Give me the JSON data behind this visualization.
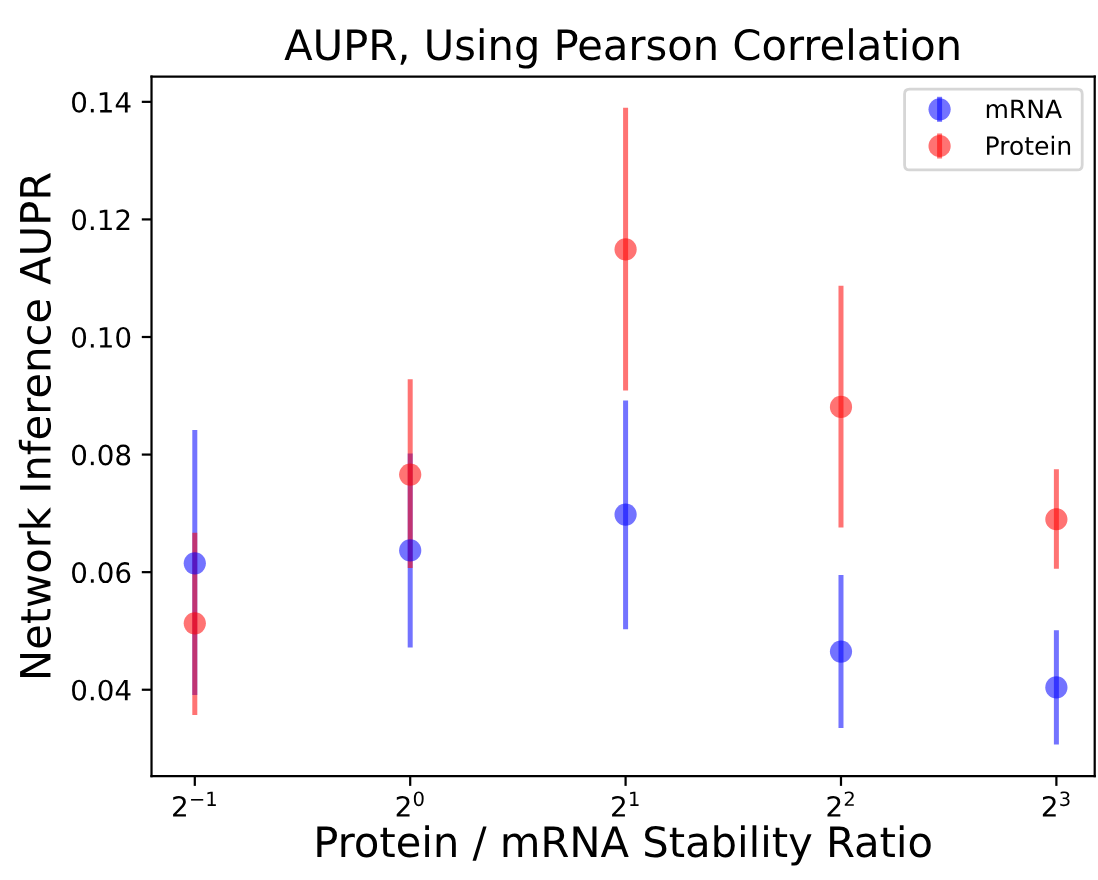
{
  "chart_data": {
    "type": "scatter",
    "title": "AUPR, Using Pearson Correlation",
    "xlabel": "Protein / mRNA Stability Ratio",
    "ylabel": "Network Inference AUPR",
    "x": [
      0.5,
      1,
      2,
      4,
      8
    ],
    "log": "x",
    "marker": "circle",
    "legend": "top right",
    "grid": false,
    "xlim": [
      0.435,
      9.05
    ],
    "ylim": [
      0.0253,
      0.1443
    ],
    "xticks": [
      {
        "value": 0.5,
        "label": "2$^{−1}$"
      },
      {
        "value": 1,
        "label": "2$^{0}$"
      },
      {
        "value": 2,
        "label": "2$^{1}$"
      },
      {
        "value": 4,
        "label": "2$^{2}$"
      },
      {
        "value": 8,
        "label": "2$^{3}$"
      }
    ],
    "yticks": [
      {
        "value": 0.04,
        "label": "0.04"
      },
      {
        "value": 0.06,
        "label": "0.06"
      },
      {
        "value": 0.08,
        "label": "0.08"
      },
      {
        "value": 0.1,
        "label": "0.10"
      },
      {
        "value": 0.12,
        "label": "0.12"
      },
      {
        "value": 0.14,
        "label": "0.14"
      }
    ],
    "series": [
      {
        "name": "mRNA",
        "color": "#0000ff",
        "values": [
          0.0615,
          0.0637,
          0.0698,
          0.0465,
          0.0404
        ],
        "errors": [
          [
            0.0391,
            0.0842
          ],
          [
            0.0472,
            0.0802
          ],
          [
            0.0503,
            0.0892
          ],
          [
            0.0335,
            0.0595
          ],
          [
            0.0307,
            0.0501
          ]
        ]
      },
      {
        "name": "Protein",
        "color": "#ff0000",
        "values": [
          0.0513,
          0.0766,
          0.1149,
          0.0881,
          0.069
        ],
        "errors": [
          [
            0.0357,
            0.0667
          ],
          [
            0.0607,
            0.0928
          ],
          [
            0.0909,
            0.139
          ],
          [
            0.0676,
            0.1087
          ],
          [
            0.0606,
            0.0775
          ]
        ]
      }
    ]
  }
}
